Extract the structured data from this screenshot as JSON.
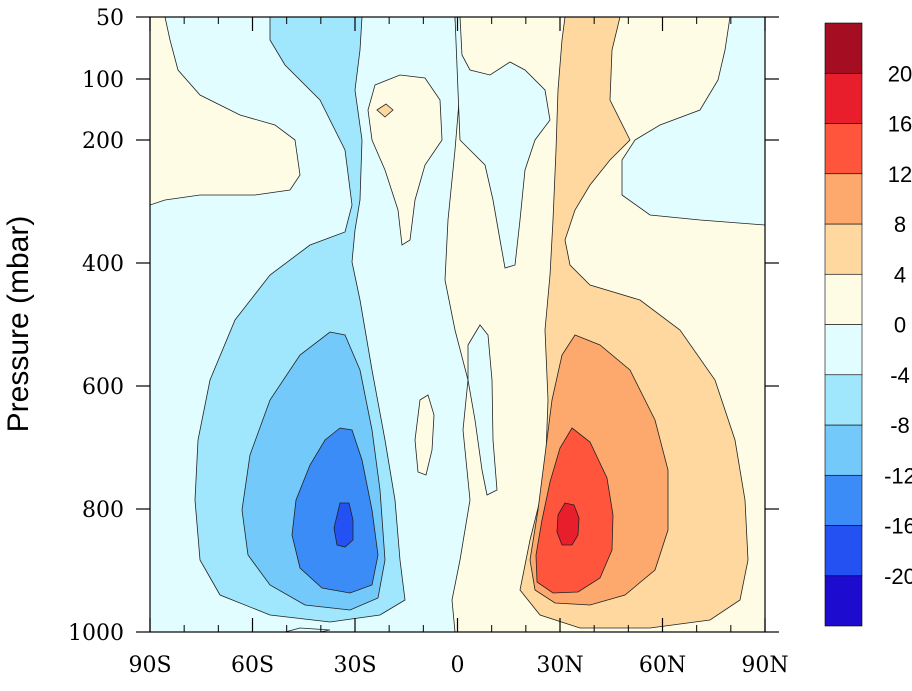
{
  "chart_data": {
    "type": "contour",
    "ylabel": "Pressure (mbar)",
    "xlabel": "",
    "x_ticks": [
      "90S",
      "60S",
      "30S",
      "0",
      "30N",
      "60N",
      "90N"
    ],
    "x_tick_values": [
      -90,
      -60,
      -30,
      0,
      30,
      60,
      90
    ],
    "y_ticks": [
      "50",
      "100",
      "200",
      "400",
      "600",
      "800",
      "1000"
    ],
    "y_tick_values": [
      50,
      100,
      200,
      400,
      600,
      800,
      1000
    ],
    "xlim": [
      -90,
      90
    ],
    "ylim": [
      1000,
      50
    ],
    "colorbar": {
      "levels": [
        -20,
        -16,
        -12,
        -8,
        -4,
        0,
        4,
        8,
        12,
        16,
        20
      ],
      "labels": [
        "-20",
        "-16",
        "-12",
        "-8",
        "-4",
        "0",
        "4",
        "8",
        "12",
        "16",
        "20"
      ],
      "colors": [
        "#1e0bd0",
        "#2351f2",
        "#3c8cf7",
        "#73c9fa",
        "#a0e6fd",
        "#e1fdff",
        "#fffce6",
        "#fed89f",
        "#fda86c",
        "#ff553d",
        "#e91e2d",
        "#a50e22"
      ]
    },
    "features": [
      {
        "name": "southern-minimum",
        "lat": -33,
        "pressure": 820,
        "value": -16
      },
      {
        "name": "northern-maximum",
        "lat": 33,
        "pressure": 820,
        "value": 16
      }
    ]
  },
  "colors": {
    "c_n20": "#1e0bd0",
    "c_n16": "#2351f2",
    "c_n12": "#3c8cf7",
    "c_n8": "#73c9fa",
    "c_n4": "#a0e6fd",
    "c_0": "#e1fdff",
    "c_4": "#fffce6",
    "c_8": "#fed89f",
    "c_12": "#fda86c",
    "c_16": "#ff553d",
    "c_20": "#e91e2d",
    "c_top": "#a50e22"
  }
}
